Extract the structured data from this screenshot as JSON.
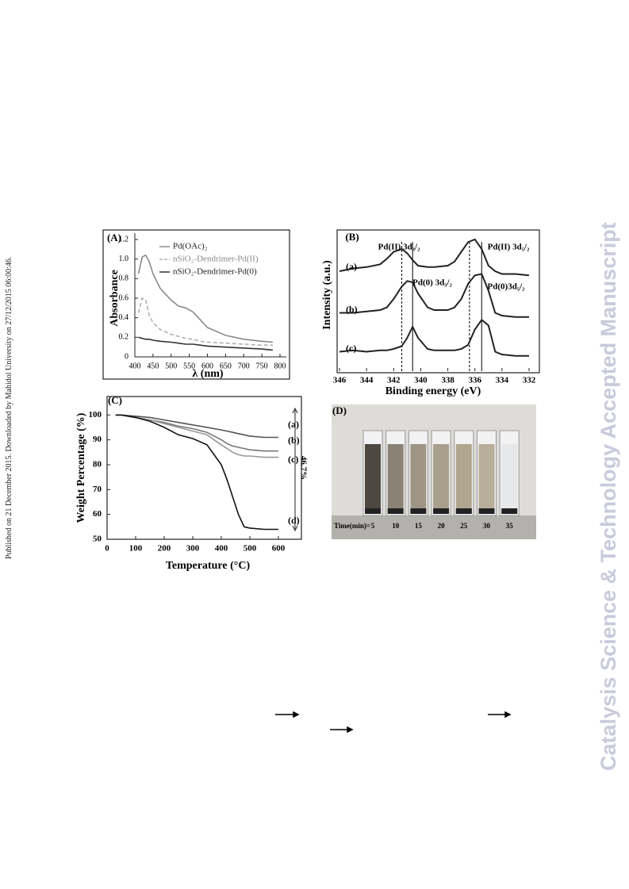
{
  "published_note": "Published on 21 December 2015. Downloaded by Mahidol University on 27/12/2015 06:00:46.",
  "watermark": "Catalysis Science & Technology Accepted Manuscript",
  "panels": [
    {
      "label": "(A)",
      "chart_data": {
        "type": "line",
        "x_label": "λ (nm)",
        "y_label": "Absorbance",
        "xlim": [
          400,
          800
        ],
        "xticks": [
          400,
          450,
          500,
          550,
          600,
          650,
          700,
          750,
          800
        ],
        "ylim": [
          0,
          1.2
        ],
        "yticks": [
          0,
          0.2,
          0.4,
          0.6,
          0.8,
          {
            "value": 1.0,
            "label": "1.0"
          },
          1.2
        ],
        "x": [
          410,
          420,
          430,
          440,
          450,
          470,
          500,
          520,
          540,
          560,
          580,
          600,
          650,
          700,
          750,
          780
        ],
        "series": [
          {
            "name": "Pd(OAc)₂",
            "color": "#8a8a8a",
            "dashed": false,
            "values": [
              0.85,
              1.02,
              1.04,
              0.97,
              0.85,
              0.7,
              0.58,
              0.52,
              0.5,
              0.46,
              0.38,
              0.3,
              0.22,
              0.18,
              0.16,
              0.15
            ]
          },
          {
            "name": "nSiO₂-Dendrimer-Pd(II)",
            "color": "#b0b0b0",
            "dashed": true,
            "values": [
              0.45,
              0.6,
              0.58,
              0.42,
              0.35,
              0.28,
              0.23,
              0.21,
              0.19,
              0.18,
              0.16,
              0.15,
              0.14,
              0.13,
              0.12,
              0.12
            ]
          },
          {
            "name": "nSiO₂-Dendrimer-Pd(0)",
            "color": "#333333",
            "dashed": false,
            "values": [
              0.2,
              0.19,
              0.18,
              0.18,
              0.17,
              0.16,
              0.15,
              0.14,
              0.13,
              0.13,
              0.12,
              0.11,
              0.1,
              0.09,
              0.08,
              0.07
            ]
          }
        ]
      }
    },
    {
      "label": "(B)",
      "chart_data": {
        "type": "line",
        "x_label": "Binding energy (eV)",
        "y_label": "Intensity (a.u.)",
        "xlim": [
          346,
          332
        ],
        "xticks": [
          346,
          344,
          342,
          340,
          338,
          336,
          334,
          332
        ],
        "ylim": [
          0,
          10
        ],
        "x": [
          346,
          345,
          344,
          343,
          342.5,
          342,
          341.4,
          341,
          340.6,
          340.2,
          339.5,
          339,
          338,
          337.5,
          337,
          336.5,
          336,
          335.5,
          335,
          334.5,
          334,
          333,
          332
        ],
        "series": [
          {
            "name": "(a)",
            "color": "#222222",
            "dashed": false,
            "values": [
              7.2,
              7.4,
              7.5,
              7.7,
              8.1,
              8.6,
              8.8,
              8.5,
              8.0,
              7.6,
              7.5,
              7.5,
              7.6,
              7.9,
              8.6,
              9.3,
              9.5,
              8.8,
              7.6,
              7.2,
              7.0,
              7.0,
              6.9
            ]
          },
          {
            "name": "(b)",
            "color": "#222222",
            "dashed": false,
            "values": [
              4.2,
              4.2,
              4.3,
              4.4,
              4.6,
              5.2,
              6.1,
              6.5,
              6.4,
              5.6,
              4.6,
              4.4,
              4.4,
              4.6,
              5.2,
              6.3,
              6.9,
              7.0,
              5.8,
              4.2,
              4.0,
              3.9,
              3.9
            ]
          },
          {
            "name": "(c)",
            "color": "#222222",
            "dashed": false,
            "values": [
              1.4,
              1.5,
              1.4,
              1.5,
              1.5,
              1.6,
              1.8,
              2.4,
              3.2,
              2.4,
              1.6,
              1.5,
              1.5,
              1.5,
              1.6,
              1.9,
              3.0,
              3.7,
              3.3,
              1.4,
              1.2,
              1.1,
              1.1
            ]
          }
        ],
        "reference_lines": [
          {
            "x": 341.4,
            "dashed": true
          },
          {
            "x": 340.6,
            "dashed": false
          },
          {
            "x": 336.4,
            "dashed": true
          },
          {
            "x": 335.5,
            "dashed": false
          }
        ],
        "annotations": [
          "Pd(II) 3d₃/₂",
          "Pd(II) 3d₅/₂",
          "Pd(0) 3d₃/₂",
          "Pd(0)3d₅/₂"
        ]
      }
    },
    {
      "label": "(C)",
      "chart_data": {
        "type": "line",
        "x_label": "Temperature (°C)",
        "y_label": "Weight Percentage (%)",
        "xlim": [
          0,
          650
        ],
        "xticks": [
          0,
          100,
          200,
          300,
          400,
          500,
          600
        ],
        "ylim": [
          50,
          102
        ],
        "yticks": [
          50,
          60,
          70,
          80,
          90,
          100
        ],
        "x": [
          30,
          50,
          100,
          150,
          200,
          250,
          300,
          350,
          400,
          420,
          440,
          460,
          480,
          500,
          550,
          600
        ],
        "series": [
          {
            "name": "(a)",
            "color": "#555555",
            "dashed": false,
            "values": [
              100,
              100,
              99.5,
              99,
              98,
              97,
              96,
              95,
              94,
              93.5,
              93,
              92.5,
              92,
              91.5,
              91,
              91
            ]
          },
          {
            "name": "(b)",
            "color": "#777777",
            "dashed": false,
            "values": [
              100,
              100,
              99,
              98,
              97,
              95.5,
              94.5,
              93,
              90,
              88.5,
              87.5,
              87,
              86.5,
              86,
              85.5,
              85.5
            ]
          },
          {
            "name": "(c)",
            "color": "#999999",
            "dashed": false,
            "values": [
              100,
              100,
              99,
              98,
              96.5,
              95,
              93.5,
              92,
              88,
              86.5,
              85,
              84,
              83.5,
              83.5,
              83,
              83
            ]
          },
          {
            "name": "(d)",
            "color": "#111111",
            "dashed": false,
            "values": [
              100,
              100,
              99,
              97.5,
              95,
              92,
              90.5,
              88,
              80,
              74,
              67,
              60,
              55,
              54.5,
              54,
              54
            ]
          }
        ],
        "annotations": [
          "46.7%"
        ]
      }
    },
    {
      "label": "(D)",
      "chart_data": {
        "type": "photo",
        "caption": "Time(min)=",
        "categories": [
          5,
          10,
          15,
          20,
          25,
          30,
          35
        ]
      }
    }
  ]
}
